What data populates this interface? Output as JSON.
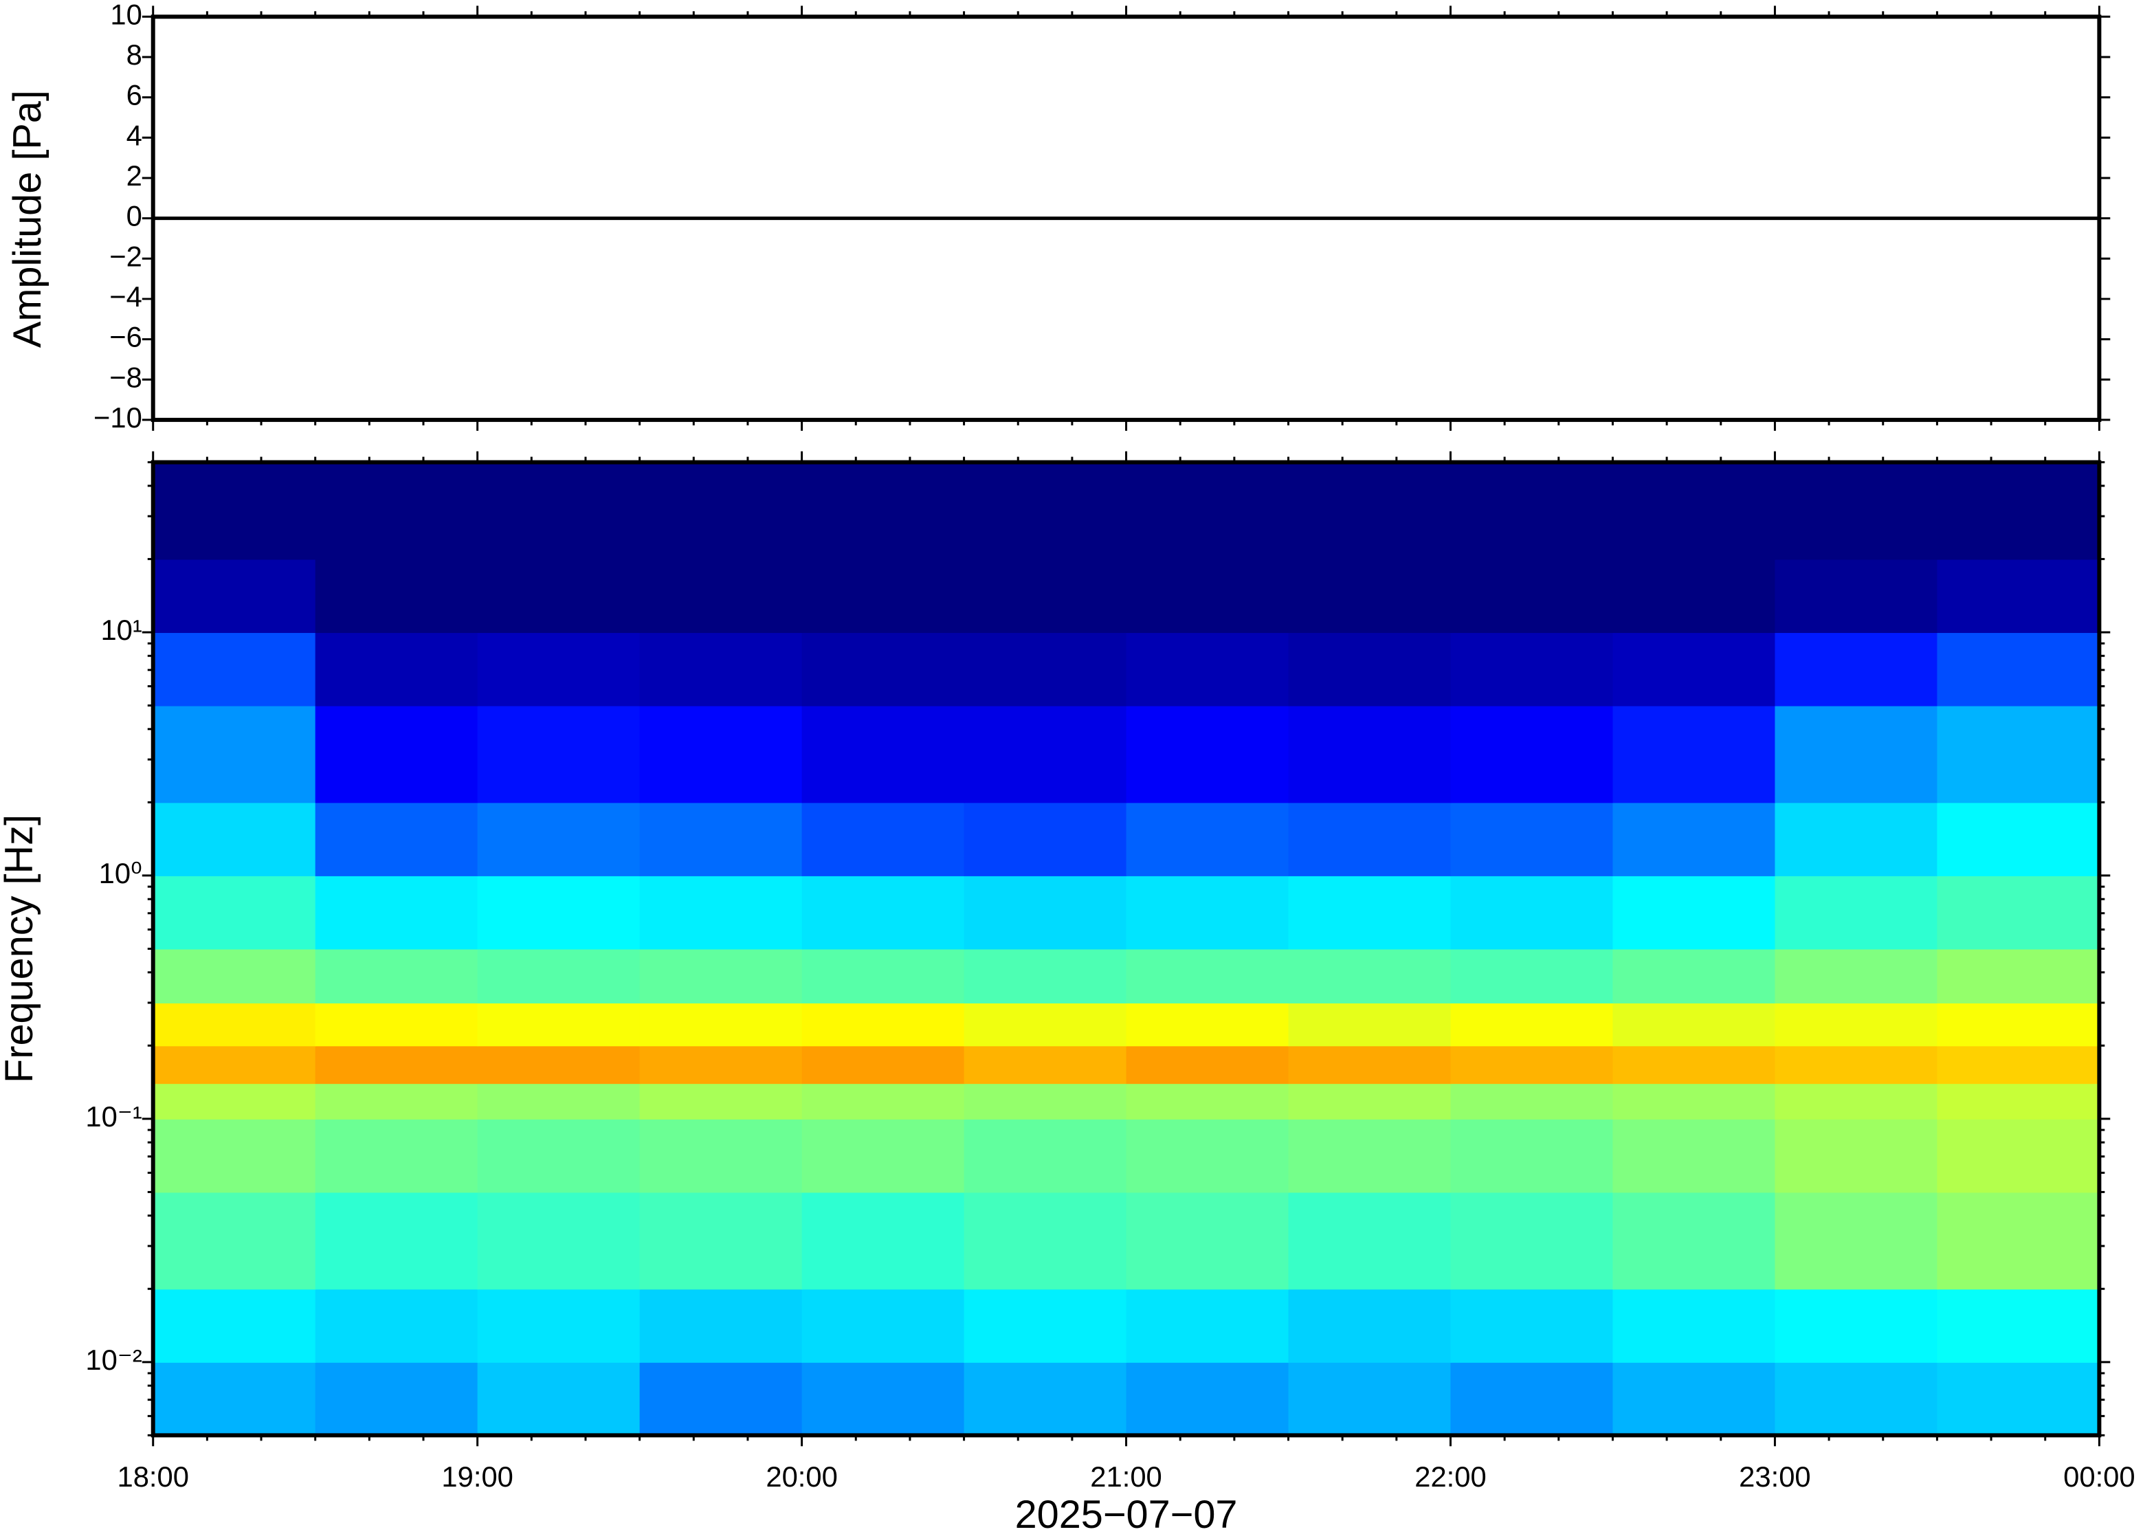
{
  "chart_data": [
    {
      "type": "line",
      "ylabel": "Amplitude [Pa]",
      "x": [
        18,
        24
      ],
      "values": [
        0,
        0
      ],
      "color": "#000000",
      "xlim": [
        18,
        24
      ],
      "ylim": [
        -10,
        10
      ],
      "yticks": [
        {
          "value": -10,
          "label": "−10"
        },
        {
          "value": -8,
          "label": "−8"
        },
        {
          "value": -6,
          "label": "−6"
        },
        {
          "value": -4,
          "label": "−4"
        },
        {
          "value": -2,
          "label": "−2"
        },
        0,
        2,
        4,
        6,
        8,
        10
      ]
    },
    {
      "type": "heatmap",
      "ylabel": "Frequency [Hz]",
      "xlabel": "2025−07−07",
      "log_y": true,
      "colormap": "jet",
      "xlim": [
        18,
        24
      ],
      "ylim": [
        0.005,
        50
      ],
      "xticks": [
        {
          "value": 18,
          "label": "18:00"
        },
        {
          "value": 19,
          "label": "19:00"
        },
        {
          "value": 20,
          "label": "20:00"
        },
        {
          "value": 21,
          "label": "21:00"
        },
        {
          "value": 22,
          "label": "22:00"
        },
        {
          "value": 23,
          "label": "23:00"
        },
        {
          "value": 24,
          "label": "00:00"
        }
      ],
      "yticks": [
        {
          "value": 0.01,
          "label": "10⁻²"
        },
        {
          "value": 0.1,
          "label": "10⁻¹"
        },
        {
          "value": 1,
          "label": "10⁰"
        },
        {
          "value": 10,
          "label": "10¹"
        }
      ],
      "x_edges": [
        18,
        18.5,
        19,
        19.5,
        20,
        20.5,
        21,
        21.5,
        22,
        22.5,
        23,
        23.5,
        24
      ],
      "y_edges": [
        0.005,
        0.01,
        0.02,
        0.05,
        0.1,
        0.14,
        0.2,
        0.3,
        0.5,
        1,
        2,
        5,
        10,
        20,
        50
      ],
      "z": [
        [
          0.3,
          0.28,
          0.32,
          0.25,
          0.27,
          0.3,
          0.28,
          0.3,
          0.27,
          0.3,
          0.32,
          0.33
        ],
        [
          0.36,
          0.34,
          0.35,
          0.33,
          0.34,
          0.36,
          0.35,
          0.33,
          0.34,
          0.36,
          0.37,
          0.38
        ],
        [
          0.45,
          0.42,
          0.43,
          0.44,
          0.42,
          0.44,
          0.45,
          0.43,
          0.44,
          0.46,
          0.5,
          0.52
        ],
        [
          0.5,
          0.48,
          0.47,
          0.48,
          0.49,
          0.47,
          0.48,
          0.49,
          0.48,
          0.5,
          0.53,
          0.55
        ],
        [
          0.55,
          0.53,
          0.52,
          0.54,
          0.53,
          0.52,
          0.53,
          0.54,
          0.52,
          0.53,
          0.55,
          0.57
        ],
        [
          0.7,
          0.72,
          0.72,
          0.71,
          0.72,
          0.7,
          0.72,
          0.71,
          0.7,
          0.69,
          0.68,
          0.67
        ],
        [
          0.64,
          0.63,
          0.62,
          0.62,
          0.63,
          0.61,
          0.62,
          0.6,
          0.62,
          0.6,
          0.61,
          0.62
        ],
        [
          0.5,
          0.47,
          0.46,
          0.47,
          0.46,
          0.45,
          0.46,
          0.46,
          0.45,
          0.47,
          0.5,
          0.52
        ],
        [
          0.42,
          0.36,
          0.37,
          0.36,
          0.35,
          0.34,
          0.35,
          0.36,
          0.35,
          0.37,
          0.42,
          0.44
        ],
        [
          0.34,
          0.22,
          0.24,
          0.23,
          0.2,
          0.19,
          0.22,
          0.21,
          0.22,
          0.25,
          0.34,
          0.37
        ],
        [
          0.27,
          0.12,
          0.14,
          0.13,
          0.1,
          0.1,
          0.12,
          0.11,
          0.12,
          0.15,
          0.27,
          0.3
        ],
        [
          0.2,
          0.05,
          0.06,
          0.05,
          0.04,
          0.04,
          0.05,
          0.04,
          0.05,
          0.06,
          0.15,
          0.2
        ],
        [
          0.04,
          0,
          0,
          0,
          0,
          0,
          0,
          0,
          0,
          0,
          0.02,
          0.04
        ],
        [
          0,
          0,
          0,
          0,
          0,
          0,
          0,
          0,
          0,
          0,
          0,
          0
        ]
      ]
    }
  ]
}
